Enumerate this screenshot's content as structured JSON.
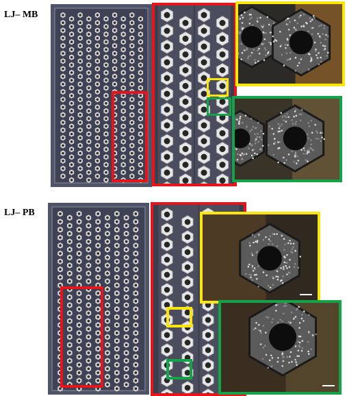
{
  "panels": [
    {
      "label": "LJ– MB"
    },
    {
      "label": "LJ– PB"
    }
  ],
  "colors": {
    "region_box": "#e8141c",
    "yellow_box": "#fbe60c",
    "green_box": "#15a34a",
    "board": "#4a4a5c",
    "cell_light": "#d6d6d6",
    "cell_dark": "#2b2b2b"
  }
}
